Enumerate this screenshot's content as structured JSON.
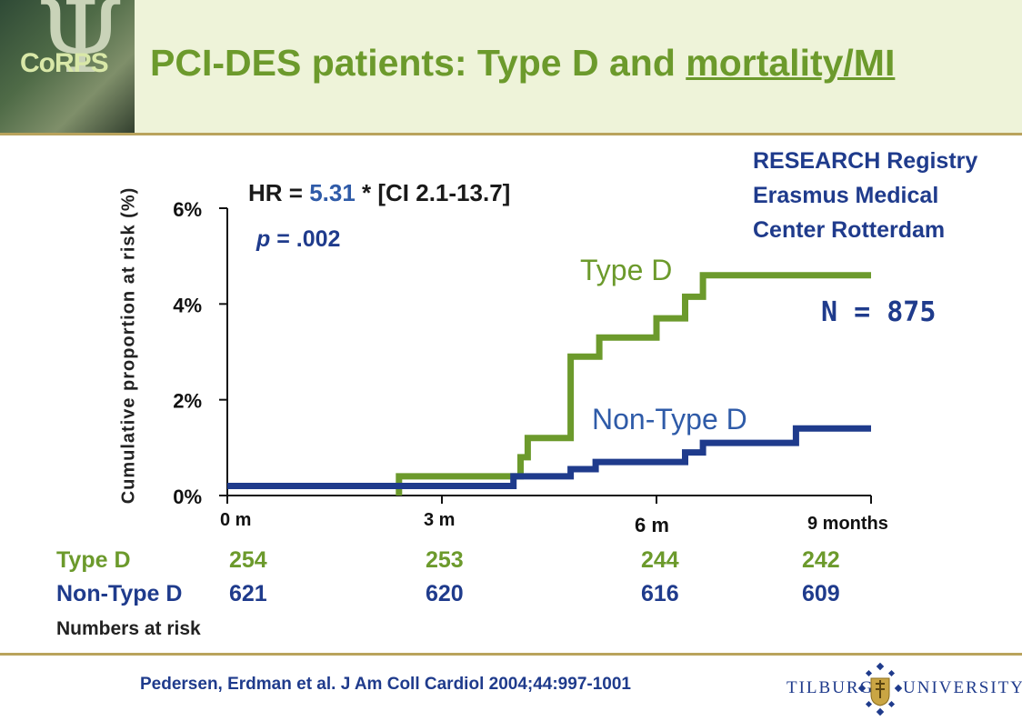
{
  "header": {
    "logo_text": "CoRPS",
    "logo_glyph": "Ψ",
    "title_main": "PCI-DES patients: Type D and ",
    "title_underlined": "mortality/MI"
  },
  "registry": {
    "line1": "RESEARCH Registry",
    "line2": "Erasmus  Medical",
    "line3": "Center Rotterdam"
  },
  "stats": {
    "hr_prefix": "HR = ",
    "hr_value": "5.31",
    "hr_suffix": " * [CI 2.1-13.7]",
    "p_label": "p",
    "p_value": " = .002",
    "n_label": "N = 875"
  },
  "chart_data": {
    "type": "line",
    "ylabel": "Cumulative proportion at risk (%)",
    "xlim": [
      0,
      9
    ],
    "ylim": [
      0,
      6
    ],
    "x_ticks": [
      {
        "value": 0,
        "label": "0 m"
      },
      {
        "value": 3,
        "label": "3 m"
      },
      {
        "value": 6,
        "label": "6 m"
      },
      {
        "value": 9,
        "label": "9 months"
      }
    ],
    "y_ticks": [
      {
        "value": 0,
        "label": "0%"
      },
      {
        "value": 2,
        "label": "2%"
      },
      {
        "value": 4,
        "label": "4%"
      },
      {
        "value": 6,
        "label": "6%"
      }
    ],
    "series": [
      {
        "name": "Type D",
        "color": "#6c9a2c",
        "step_points": [
          [
            2.4,
            0
          ],
          [
            2.4,
            0.4
          ],
          [
            4.1,
            0.4
          ],
          [
            4.1,
            0.8
          ],
          [
            4.2,
            0.8
          ],
          [
            4.2,
            1.2
          ],
          [
            4.8,
            1.2
          ],
          [
            4.8,
            2.9
          ],
          [
            5.2,
            2.9
          ],
          [
            5.2,
            3.3
          ],
          [
            6.0,
            3.3
          ],
          [
            6.0,
            3.7
          ],
          [
            6.4,
            3.7
          ],
          [
            6.4,
            4.15
          ],
          [
            6.65,
            4.15
          ],
          [
            6.65,
            4.6
          ],
          [
            9.0,
            4.6
          ]
        ]
      },
      {
        "name": "Non-Type D",
        "color": "#1f3b8c",
        "step_points": [
          [
            0,
            0.2
          ],
          [
            4.0,
            0.2
          ],
          [
            4.0,
            0.4
          ],
          [
            4.8,
            0.4
          ],
          [
            4.8,
            0.55
          ],
          [
            5.15,
            0.55
          ],
          [
            5.15,
            0.7
          ],
          [
            6.4,
            0.7
          ],
          [
            6.4,
            0.9
          ],
          [
            6.65,
            0.9
          ],
          [
            6.65,
            1.1
          ],
          [
            7.95,
            1.1
          ],
          [
            7.95,
            1.4
          ],
          [
            9.0,
            1.4
          ]
        ]
      }
    ],
    "annotations": [
      {
        "text": "Type D",
        "color": "#6c9a2c"
      },
      {
        "text": "Non-Type D",
        "color": "#2f5ba8"
      }
    ]
  },
  "risk_table": {
    "rows": [
      {
        "label": "Type D",
        "values": [
          "254",
          "253",
          "244",
          "242"
        ]
      },
      {
        "label": "Non-Type D",
        "values": [
          "621",
          "620",
          "616",
          "609"
        ]
      }
    ],
    "caption": "Numbers at risk"
  },
  "footer": {
    "citation": "Pedersen, Erdman et al. J Am Coll Cardiol 2004;44:997-1001",
    "uni_left": "TILBURG",
    "uni_right": "UNIVERSITY"
  }
}
